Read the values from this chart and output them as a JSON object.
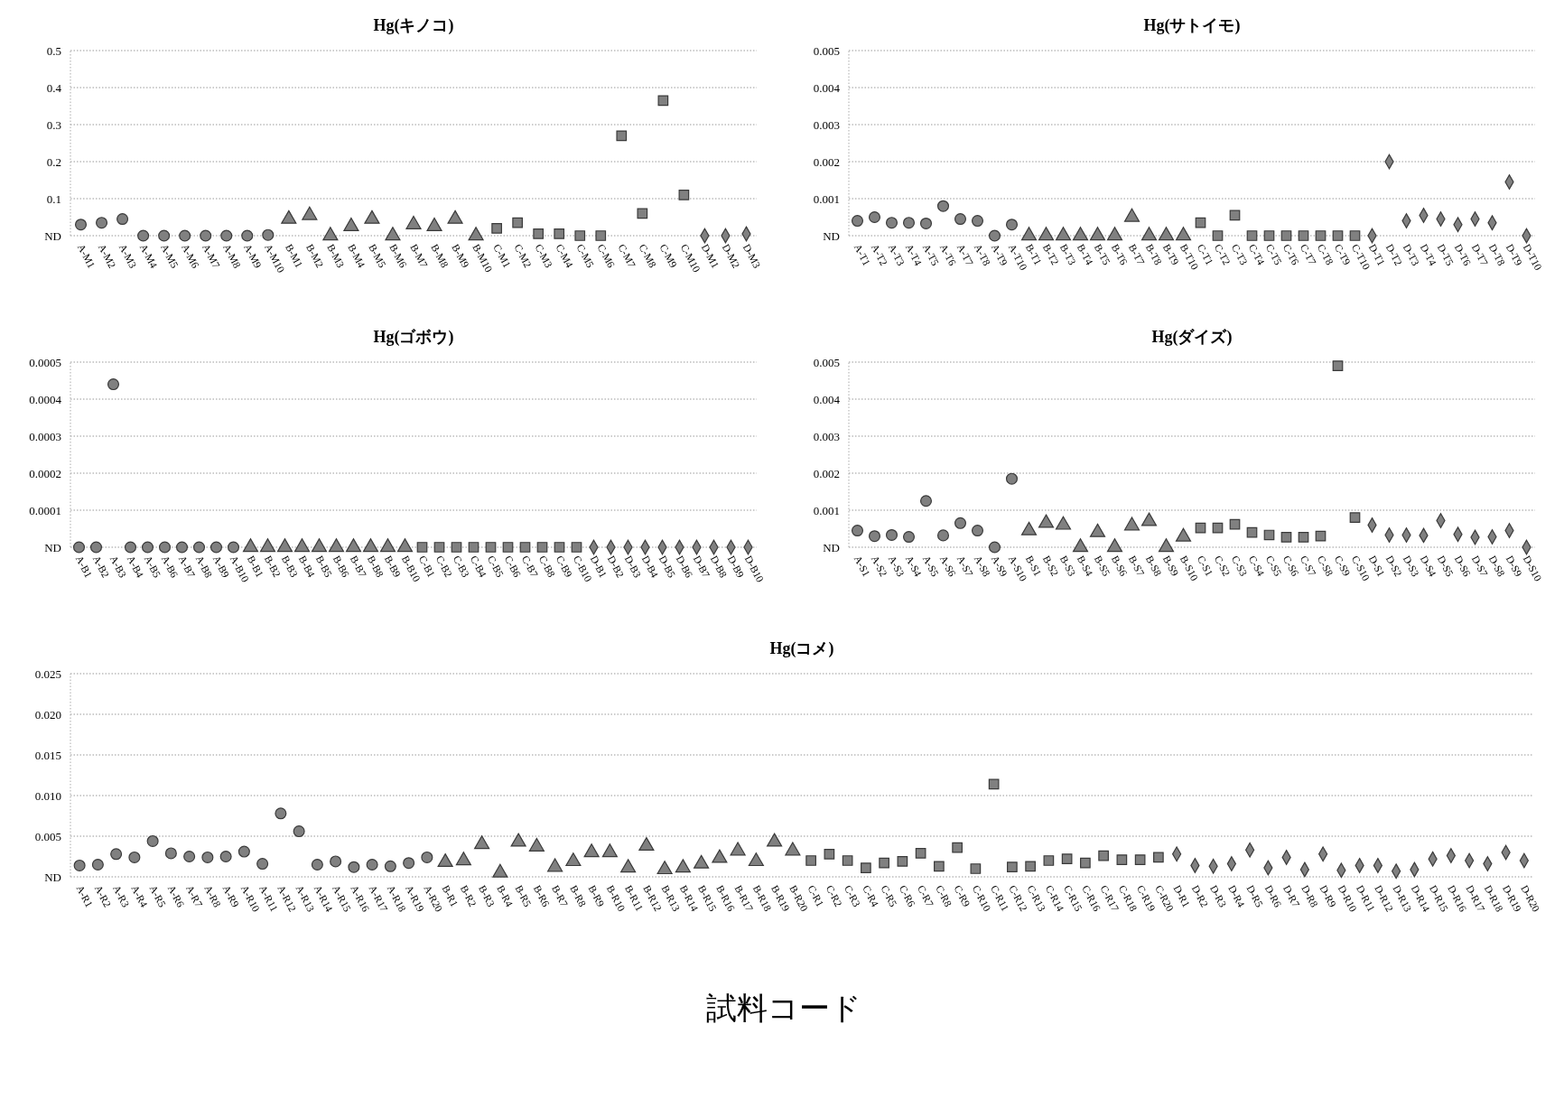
{
  "chart_data": [
    {
      "type": "scatter",
      "title": "Hg(キノコ)",
      "categories": [
        "A-M1",
        "A-M2",
        "A-M3",
        "A-M4",
        "A-M5",
        "A-M6",
        "A-M7",
        "A-M8",
        "A-M9",
        "A-M10",
        "B-M1",
        "B-M2",
        "B-M3",
        "B-M4",
        "B-M5",
        "B-M6",
        "B-M7",
        "B-M8",
        "B-M9",
        "B-M10",
        "C-M1",
        "C-M2",
        "C-M3",
        "C-M4",
        "C-M5",
        "C-M6",
        "C-M7",
        "C-M8",
        "C-M9",
        "C-M10",
        "D-M1",
        "D-M2",
        "D-M3"
      ],
      "ylim": [
        0,
        0.5
      ],
      "yticks": [
        {
          "value": 0,
          "label": "ND"
        },
        0.1,
        0.2,
        0.3,
        0.4,
        0.5
      ],
      "grid": "y",
      "series": [
        {
          "color": "#808080",
          "marker": "circle",
          "values": [
            0.03,
            0.035,
            0.045,
            0,
            0,
            0,
            0,
            0,
            0,
            0.002,
            null,
            null,
            null,
            null,
            null,
            null,
            null,
            null,
            null,
            null,
            null,
            null,
            null,
            null,
            null,
            null,
            null,
            null,
            null,
            null,
            null,
            null,
            null
          ]
        },
        {
          "color": "#808080",
          "marker": "triangle",
          "values": [
            null,
            null,
            null,
            null,
            null,
            null,
            null,
            null,
            null,
            null,
            0.045,
            0.055,
            0,
            0.025,
            0.045,
            0,
            0.03,
            0.025,
            0.045,
            0,
            null,
            null,
            null,
            null,
            null,
            null,
            null,
            null,
            null,
            null,
            null,
            null,
            null
          ]
        },
        {
          "color": "#808080",
          "marker": "square",
          "values": [
            null,
            null,
            null,
            null,
            null,
            null,
            null,
            null,
            null,
            null,
            null,
            null,
            null,
            null,
            null,
            null,
            null,
            null,
            null,
            null,
            0.02,
            0.035,
            0.005,
            0.005,
            0,
            0,
            0.27,
            0.06,
            0.365,
            0.11,
            null,
            null,
            null
          ]
        },
        {
          "color": "#808080",
          "marker": "diamond",
          "values": [
            null,
            null,
            null,
            null,
            null,
            null,
            null,
            null,
            null,
            null,
            null,
            null,
            null,
            null,
            null,
            null,
            null,
            null,
            null,
            null,
            null,
            null,
            null,
            null,
            null,
            null,
            null,
            null,
            null,
            null,
            0,
            0,
            0.005
          ]
        }
      ]
    },
    {
      "type": "scatter",
      "title": "Hg(サトイモ)",
      "categories": [
        "A-T1",
        "A-T2",
        "A-T3",
        "A-T4",
        "A-T5",
        "A-T6",
        "A-T7",
        "A-T8",
        "A-T9",
        "A-T10",
        "B-T1",
        "B-T2",
        "B-T3",
        "B-T4",
        "B-T5",
        "B-T6",
        "B-T7",
        "B-T8",
        "B-T9",
        "B-T10",
        "C-T1",
        "C-T2",
        "C-T3",
        "C-T4",
        "C-T5",
        "C-T6",
        "C-T7",
        "C-T8",
        "C-T9",
        "C-T10",
        "D-T1",
        "D-T2",
        "D-T3",
        "D-T4",
        "D-T5",
        "D-T6",
        "D-T7",
        "D-T8",
        "D-T9",
        "D-T10"
      ],
      "ylim": [
        0,
        0.005
      ],
      "yticks": [
        {
          "value": 0,
          "label": "ND"
        },
        0.001,
        0.002,
        0.003,
        0.004,
        0.005
      ],
      "grid": "y",
      "series": [
        {
          "color": "#808080",
          "marker": "circle",
          "values": [
            0.0004,
            0.0005,
            0.00035,
            0.00035,
            0.00033,
            0.0008,
            0.00045,
            0.0004,
            0,
            0.0003,
            null,
            null,
            null,
            null,
            null,
            null,
            null,
            null,
            null,
            null,
            null,
            null,
            null,
            null,
            null,
            null,
            null,
            null,
            null,
            null,
            null,
            null,
            null,
            null,
            null,
            null,
            null,
            null,
            null,
            null
          ]
        },
        {
          "color": "#808080",
          "marker": "triangle",
          "values": [
            null,
            null,
            null,
            null,
            null,
            null,
            null,
            null,
            null,
            null,
            0,
            0,
            0,
            0,
            0,
            0,
            0.0005,
            0,
            0,
            0,
            null,
            null,
            null,
            null,
            null,
            null,
            null,
            null,
            null,
            null,
            null,
            null,
            null,
            null,
            null,
            null,
            null,
            null,
            null,
            null
          ]
        },
        {
          "color": "#808080",
          "marker": "square",
          "values": [
            null,
            null,
            null,
            null,
            null,
            null,
            null,
            null,
            null,
            null,
            null,
            null,
            null,
            null,
            null,
            null,
            null,
            null,
            null,
            null,
            0.00035,
            0,
            0.00055,
            0,
            0,
            0,
            0,
            0,
            0,
            0,
            null,
            null,
            null,
            null,
            null,
            null,
            null,
            null,
            null,
            null
          ]
        },
        {
          "color": "#808080",
          "marker": "diamond",
          "values": [
            null,
            null,
            null,
            null,
            null,
            null,
            null,
            null,
            null,
            null,
            null,
            null,
            null,
            null,
            null,
            null,
            null,
            null,
            null,
            null,
            null,
            null,
            null,
            null,
            null,
            null,
            null,
            null,
            null,
            null,
            0,
            0.002,
            0.0004,
            0.00055,
            0.00045,
            0.0003,
            0.00045,
            0.00035,
            0.00145,
            0
          ]
        }
      ]
    },
    {
      "type": "scatter",
      "title": "Hg(ゴボウ)",
      "categories": [
        "A-B1",
        "A-B2",
        "A-B3",
        "A-B4",
        "A-B5",
        "A-B6",
        "A-B7",
        "A-B8",
        "A-B9",
        "A-B10",
        "B-B1",
        "B-B2",
        "B-B3",
        "B-B4",
        "B-B5",
        "B-B6",
        "B-B7",
        "B-B8",
        "B-B9",
        "B-B10",
        "C-B1",
        "C-B2",
        "C-B3",
        "C-B4",
        "C-B5",
        "C-B6",
        "C-B7",
        "C-B8",
        "C-B9",
        "C-B10",
        "D-B1",
        "D-B2",
        "D-B3",
        "D-B4",
        "D-B5",
        "D-B6",
        "D-B7",
        "D-B8",
        "D-B9",
        "D-B10"
      ],
      "ylim": [
        0,
        0.0005
      ],
      "yticks": [
        {
          "value": 0,
          "label": "ND"
        },
        0.0001,
        0.0002,
        0.0003,
        0.0004,
        0.0005
      ],
      "grid": "y",
      "series": [
        {
          "color": "#808080",
          "marker": "circle",
          "values": [
            0,
            0,
            0.00044,
            0,
            0,
            0,
            0,
            0,
            0,
            0,
            null,
            null,
            null,
            null,
            null,
            null,
            null,
            null,
            null,
            null,
            null,
            null,
            null,
            null,
            null,
            null,
            null,
            null,
            null,
            null,
            null,
            null,
            null,
            null,
            null,
            null,
            null,
            null,
            null,
            null
          ]
        },
        {
          "color": "#808080",
          "marker": "triangle",
          "values": [
            null,
            null,
            null,
            null,
            null,
            null,
            null,
            null,
            null,
            null,
            0,
            0,
            0,
            0,
            0,
            0,
            0,
            0,
            0,
            0,
            null,
            null,
            null,
            null,
            null,
            null,
            null,
            null,
            null,
            null,
            null,
            null,
            null,
            null,
            null,
            null,
            null,
            null,
            null,
            null
          ]
        },
        {
          "color": "#808080",
          "marker": "square",
          "values": [
            null,
            null,
            null,
            null,
            null,
            null,
            null,
            null,
            null,
            null,
            null,
            null,
            null,
            null,
            null,
            null,
            null,
            null,
            null,
            null,
            0,
            0,
            0,
            0,
            0,
            0,
            0,
            0,
            0,
            0,
            null,
            null,
            null,
            null,
            null,
            null,
            null,
            null,
            null,
            null
          ]
        },
        {
          "color": "#808080",
          "marker": "diamond",
          "values": [
            null,
            null,
            null,
            null,
            null,
            null,
            null,
            null,
            null,
            null,
            null,
            null,
            null,
            null,
            null,
            null,
            null,
            null,
            null,
            null,
            null,
            null,
            null,
            null,
            null,
            null,
            null,
            null,
            null,
            null,
            0,
            0,
            0,
            0,
            0,
            0,
            0,
            0,
            0,
            0
          ]
        }
      ]
    },
    {
      "type": "scatter",
      "title": "Hg(ダイズ)",
      "categories": [
        "A-S1",
        "A-S2",
        "A-S3",
        "A-S4",
        "A-S5",
        "A-S6",
        "A-S7",
        "A-S8",
        "A-S9",
        "A-S10",
        "B-S1",
        "B-S2",
        "B-S3",
        "B-S4",
        "B-S5",
        "B-S6",
        "B-S7",
        "B-S8",
        "B-S9",
        "B-S10",
        "C-S1",
        "C-S2",
        "C-S3",
        "C-S4",
        "C-S5",
        "C-S6",
        "C-S7",
        "C-S8",
        "C-S9",
        "C-S10",
        "D-S1",
        "D-S2",
        "D-S3",
        "D-S4",
        "D-S5",
        "D-S6",
        "D-S7",
        "D-S8",
        "D-S9",
        "D-S10"
      ],
      "ylim": [
        0,
        0.005
      ],
      "yticks": [
        {
          "value": 0,
          "label": "ND"
        },
        0.001,
        0.002,
        0.003,
        0.004,
        0.005
      ],
      "grid": "y",
      "series": [
        {
          "color": "#808080",
          "marker": "circle",
          "values": [
            0.00045,
            0.0003,
            0.00033,
            0.00028,
            0.00125,
            0.00032,
            0.00065,
            0.00045,
            0,
            0.00185,
            null,
            null,
            null,
            null,
            null,
            null,
            null,
            null,
            null,
            null,
            null,
            null,
            null,
            null,
            null,
            null,
            null,
            null,
            null,
            null,
            null,
            null,
            null,
            null,
            null,
            null,
            null,
            null,
            null,
            null
          ]
        },
        {
          "color": "#808080",
          "marker": "triangle",
          "values": [
            null,
            null,
            null,
            null,
            null,
            null,
            null,
            null,
            null,
            null,
            0.00045,
            0.00065,
            0.0006,
            0,
            0.0004,
            0,
            0.00058,
            0.0007,
            0,
            0.00028,
            null,
            null,
            null,
            null,
            null,
            null,
            null,
            null,
            null,
            null,
            null,
            null,
            null,
            null,
            null,
            null,
            null,
            null,
            null,
            null
          ]
        },
        {
          "color": "#808080",
          "marker": "square",
          "values": [
            null,
            null,
            null,
            null,
            null,
            null,
            null,
            null,
            null,
            null,
            null,
            null,
            null,
            null,
            null,
            null,
            null,
            null,
            null,
            null,
            0.00052,
            0.00052,
            0.00062,
            0.0004,
            0.00033,
            0.00027,
            0.00027,
            0.0003,
            0.0049,
            0.0008,
            null,
            null,
            null,
            null,
            null,
            null,
            null,
            null,
            null,
            null
          ]
        },
        {
          "color": "#808080",
          "marker": "diamond",
          "values": [
            null,
            null,
            null,
            null,
            null,
            null,
            null,
            null,
            null,
            null,
            null,
            null,
            null,
            null,
            null,
            null,
            null,
            null,
            null,
            null,
            null,
            null,
            null,
            null,
            null,
            null,
            null,
            null,
            null,
            null,
            0.0006,
            0.00033,
            0.00033,
            0.00032,
            0.00072,
            0.00035,
            0.00027,
            0.00028,
            0.00045,
            0
          ]
        }
      ]
    },
    {
      "type": "scatter",
      "title": "Hg(コメ)",
      "xlabel": "試料コード",
      "categories": [
        "A-R1",
        "A-R2",
        "A-R3",
        "A-R4",
        "A-R5",
        "A-R6",
        "A-R7",
        "A-R8",
        "A-R9",
        "A-R10",
        "A-R11",
        "A-R12",
        "A-R13",
        "A-R14",
        "A-R15",
        "A-R16",
        "A-R17",
        "A-R18",
        "A-R19",
        "A-R20",
        "B-R1",
        "B-R2",
        "B-R3",
        "B-R4",
        "B-R5",
        "B-R6",
        "B-R7",
        "B-R8",
        "B-R9",
        "B-R10",
        "B-R11",
        "B-R12",
        "B-R13",
        "B-R14",
        "B-R15",
        "B-R16",
        "B-R17",
        "B-R18",
        "B-R19",
        "B-R20",
        "C-R1",
        "C-R2",
        "C-R3",
        "C-R4",
        "C-R5",
        "C-R6",
        "C-R7",
        "C-R8",
        "C-R9",
        "C-R10",
        "C-R11",
        "C-R12",
        "C-R13",
        "C-R14",
        "C-R15",
        "C-R16",
        "C-R17",
        "C-R18",
        "C-R19",
        "C-R20",
        "D-R1",
        "D-R2",
        "D-R3",
        "D-R4",
        "D-R5",
        "D-R6",
        "D-R7",
        "D-R8",
        "D-R9",
        "D-R10",
        "D-R11",
        "D-R12",
        "D-R13",
        "D-R14",
        "D-R15",
        "D-R16",
        "D-R17",
        "D-R18",
        "D-R19",
        "D-R20"
      ],
      "ylim": [
        0,
        0.025
      ],
      "yticks": [
        {
          "value": 0,
          "label": "ND"
        },
        {
          "value": 0.005,
          "label": "0.005"
        },
        {
          "value": 0.01,
          "label": "0.010"
        },
        {
          "value": 0.015,
          "label": "0.015"
        },
        {
          "value": 0.02,
          "label": "0.020"
        },
        {
          "value": 0.025,
          "label": "0.025"
        }
      ],
      "grid": "y",
      "series": [
        {
          "color": "#808080",
          "marker": "circle",
          "values": [
            0.0014,
            0.0015,
            0.0028,
            0.0024,
            0.0044,
            0.0029,
            0.0025,
            0.0024,
            0.0025,
            0.0031,
            0.0016,
            0.0078,
            0.0056,
            0.0015,
            0.0019,
            0.0012,
            0.0015,
            0.0013,
            0.0017,
            0.0024,
            null,
            null,
            null,
            null,
            null,
            null,
            null,
            null,
            null,
            null,
            null,
            null,
            null,
            null,
            null,
            null,
            null,
            null,
            null,
            null,
            null,
            null,
            null,
            null,
            null,
            null,
            null,
            null,
            null,
            null,
            null,
            null,
            null,
            null,
            null,
            null,
            null,
            null,
            null,
            null,
            null,
            null,
            null,
            null,
            null,
            null,
            null,
            null,
            null,
            null,
            null,
            null,
            null,
            null,
            null,
            null,
            null,
            null,
            null,
            null
          ]
        },
        {
          "color": "#808080",
          "marker": "triangle",
          "values": [
            null,
            null,
            null,
            null,
            null,
            null,
            null,
            null,
            null,
            null,
            null,
            null,
            null,
            null,
            null,
            null,
            null,
            null,
            null,
            null,
            0.0018,
            0.002,
            0.004,
            0.0005,
            0.0043,
            0.0037,
            0.0012,
            0.0019,
            0.003,
            0.003,
            0.0011,
            0.0038,
            0.0009,
            0.0011,
            0.0016,
            0.0023,
            0.0032,
            0.0019,
            0.0043,
            0.0032,
            null,
            null,
            null,
            null,
            null,
            null,
            null,
            null,
            null,
            null,
            null,
            null,
            null,
            null,
            null,
            null,
            null,
            null,
            null,
            null,
            null,
            null,
            null,
            null,
            null,
            null,
            null,
            null,
            null,
            null,
            null,
            null,
            null,
            null,
            null,
            null,
            null,
            null,
            null,
            null
          ]
        },
        {
          "color": "#808080",
          "marker": "square",
          "values": [
            null,
            null,
            null,
            null,
            null,
            null,
            null,
            null,
            null,
            null,
            null,
            null,
            null,
            null,
            null,
            null,
            null,
            null,
            null,
            null,
            null,
            null,
            null,
            null,
            null,
            null,
            null,
            null,
            null,
            null,
            null,
            null,
            null,
            null,
            null,
            null,
            null,
            null,
            null,
            null,
            0.002,
            0.0028,
            0.002,
            0.0011,
            0.0017,
            0.0019,
            0.0029,
            0.0013,
            0.0036,
            0.001,
            0.0114,
            0.0012,
            0.0013,
            0.002,
            0.0022,
            0.0017,
            0.0026,
            0.0021,
            0.0021,
            0.0024,
            null,
            null,
            null,
            null,
            null,
            null,
            null,
            null,
            null,
            null,
            null,
            null,
            null,
            null,
            null,
            null,
            null,
            null,
            null,
            null
          ]
        },
        {
          "color": "#808080",
          "marker": "diamond",
          "values": [
            null,
            null,
            null,
            null,
            null,
            null,
            null,
            null,
            null,
            null,
            null,
            null,
            null,
            null,
            null,
            null,
            null,
            null,
            null,
            null,
            null,
            null,
            null,
            null,
            null,
            null,
            null,
            null,
            null,
            null,
            null,
            null,
            null,
            null,
            null,
            null,
            null,
            null,
            null,
            null,
            null,
            null,
            null,
            null,
            null,
            null,
            null,
            null,
            null,
            null,
            null,
            null,
            null,
            null,
            null,
            null,
            null,
            null,
            null,
            null,
            0.0028,
            0.0014,
            0.0013,
            0.0016,
            0.0033,
            0.0011,
            0.0024,
            0.0009,
            0.0028,
            0.0008,
            0.0014,
            0.0014,
            0.0007,
            0.0009,
            0.0022,
            0.0026,
            0.002,
            0.0016,
            0.003,
            0.002
          ]
        }
      ]
    }
  ]
}
